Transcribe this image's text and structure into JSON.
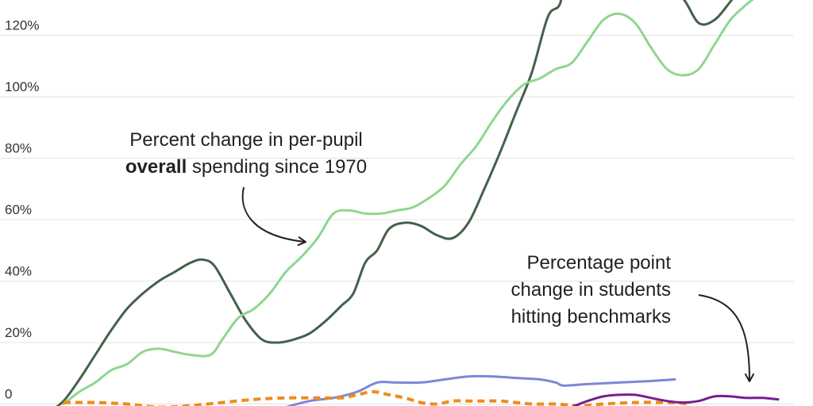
{
  "chart_data": {
    "type": "line",
    "title": "",
    "xlabel": "",
    "ylabel": "",
    "x_range": [
      0,
      100
    ],
    "ylim": [
      -2,
      132
    ],
    "grid": true,
    "y_ticks": [
      {
        "value": 0,
        "label": "0"
      },
      {
        "value": 20,
        "label": "20%"
      },
      {
        "value": 40,
        "label": "40%"
      },
      {
        "value": 60,
        "label": "60%"
      },
      {
        "value": 80,
        "label": "80%"
      },
      {
        "value": 100,
        "label": "100%"
      },
      {
        "value": 120,
        "label": "120%"
      }
    ],
    "series": [
      {
        "color": "#44604a",
        "width": 3,
        "dash": false,
        "points": [
          [
            6,
            -3
          ],
          [
            8,
            1
          ],
          [
            10,
            8
          ],
          [
            12,
            16
          ],
          [
            14,
            24
          ],
          [
            16,
            31
          ],
          [
            18,
            36
          ],
          [
            20,
            40
          ],
          [
            22,
            43
          ],
          [
            24,
            46
          ],
          [
            25.5,
            47
          ],
          [
            27,
            45
          ],
          [
            29,
            36
          ],
          [
            31,
            27
          ],
          [
            33,
            21
          ],
          [
            35,
            20
          ],
          [
            37,
            21
          ],
          [
            39,
            23
          ],
          [
            41,
            27
          ],
          [
            43,
            32
          ],
          [
            44.5,
            36
          ],
          [
            46,
            46
          ],
          [
            47.5,
            50
          ],
          [
            49,
            57
          ],
          [
            51,
            59
          ],
          [
            53,
            58
          ],
          [
            55,
            55
          ],
          [
            57,
            54
          ],
          [
            59,
            59
          ],
          [
            61,
            70
          ],
          [
            63,
            82
          ],
          [
            65,
            95
          ],
          [
            67,
            108
          ],
          [
            69,
            126
          ],
          [
            70.5,
            130
          ],
          [
            71.5,
            140
          ],
          [
            75,
            137
          ],
          [
            76.5,
            133
          ],
          [
            78,
            136
          ],
          [
            80,
            142
          ],
          [
            82,
            135
          ],
          [
            84,
            133
          ],
          [
            86,
            132
          ],
          [
            88,
            124
          ],
          [
            90,
            125
          ],
          [
            92,
            131
          ],
          [
            93.5,
            136
          ]
        ]
      },
      {
        "color": "#8fd68f",
        "width": 3,
        "dash": false,
        "points": [
          [
            8,
            0
          ],
          [
            10,
            4
          ],
          [
            12,
            7
          ],
          [
            14,
            11
          ],
          [
            16,
            13
          ],
          [
            18,
            17
          ],
          [
            20,
            18
          ],
          [
            22,
            17
          ],
          [
            24,
            16
          ],
          [
            26.5,
            16
          ],
          [
            28,
            21
          ],
          [
            30,
            28
          ],
          [
            32,
            31
          ],
          [
            34,
            36
          ],
          [
            36,
            43
          ],
          [
            38,
            48
          ],
          [
            40,
            54
          ],
          [
            42,
            62
          ],
          [
            44,
            63
          ],
          [
            46,
            62
          ],
          [
            48,
            62
          ],
          [
            50,
            63
          ],
          [
            52,
            64
          ],
          [
            54,
            67
          ],
          [
            56,
            71
          ],
          [
            58,
            78
          ],
          [
            60,
            84
          ],
          [
            62,
            92
          ],
          [
            64,
            99
          ],
          [
            66,
            104
          ],
          [
            68,
            106
          ],
          [
            70,
            109
          ],
          [
            72,
            111
          ],
          [
            74,
            118
          ],
          [
            76,
            125
          ],
          [
            78,
            127
          ],
          [
            80,
            124
          ],
          [
            82,
            116
          ],
          [
            84,
            109
          ],
          [
            86,
            107
          ],
          [
            88,
            109
          ],
          [
            90,
            117
          ],
          [
            92,
            125
          ],
          [
            94,
            130
          ],
          [
            95.5,
            133
          ]
        ]
      },
      {
        "color": "#7f86d6",
        "width": 3,
        "dash": false,
        "points": [
          [
            36,
            -1
          ],
          [
            39,
            1
          ],
          [
            42,
            2
          ],
          [
            45,
            4
          ],
          [
            47.5,
            7
          ],
          [
            50,
            7
          ],
          [
            53,
            7
          ],
          [
            56,
            8
          ],
          [
            59,
            9
          ],
          [
            62,
            9
          ],
          [
            65,
            8.5
          ],
          [
            68,
            8
          ],
          [
            70,
            7
          ],
          [
            71,
            6
          ],
          [
            74,
            6.5
          ],
          [
            78,
            7
          ],
          [
            82,
            7.5
          ],
          [
            85,
            8
          ]
        ]
      },
      {
        "color": "#ee8c1a",
        "width": 4,
        "dash": true,
        "points": [
          [
            8,
            0.5
          ],
          [
            12,
            0.5
          ],
          [
            16,
            0
          ],
          [
            20,
            -1
          ],
          [
            24,
            -0.5
          ],
          [
            28,
            0.5
          ],
          [
            32,
            1.5
          ],
          [
            36,
            2
          ],
          [
            40,
            2
          ],
          [
            43,
            2
          ],
          [
            45,
            3
          ],
          [
            47,
            4
          ],
          [
            49,
            3
          ],
          [
            51,
            2
          ],
          [
            53,
            0.5
          ],
          [
            55,
            0
          ],
          [
            57,
            1
          ],
          [
            59,
            1
          ],
          [
            61,
            1
          ],
          [
            63,
            1
          ],
          [
            65,
            0.5
          ],
          [
            67,
            0
          ],
          [
            70,
            0
          ],
          [
            73,
            -0.5
          ],
          [
            76,
            0
          ],
          [
            80,
            0.5
          ],
          [
            84,
            0.5
          ],
          [
            87,
            0
          ]
        ]
      },
      {
        "color": "#7a1c93",
        "width": 3,
        "dash": false,
        "points": [
          [
            72,
            -1
          ],
          [
            74,
            1
          ],
          [
            76,
            2.5
          ],
          [
            78,
            3
          ],
          [
            80,
            3
          ],
          [
            82,
            2
          ],
          [
            84,
            1
          ],
          [
            86,
            0.5
          ],
          [
            88,
            1
          ],
          [
            90,
            2.5
          ],
          [
            92,
            2.5
          ],
          [
            94,
            2
          ],
          [
            96,
            2
          ],
          [
            98,
            1.5
          ]
        ]
      }
    ],
    "annotations": [
      {
        "lines": [
          [
            "Percent change in per-pupil",
            ""
          ],
          [
            "overall",
            " spending since 1970"
          ]
        ],
        "anchor": "middle",
        "x": 31,
        "y": 84,
        "line_gap": 8.8
      },
      {
        "lines": [
          [
            "Percentage point",
            ""
          ],
          [
            "change in students",
            ""
          ],
          [
            "hitting benchmarks",
            ""
          ]
        ],
        "anchor": "end",
        "x": 84.5,
        "y": 44,
        "line_gap": 8.8
      }
    ]
  }
}
